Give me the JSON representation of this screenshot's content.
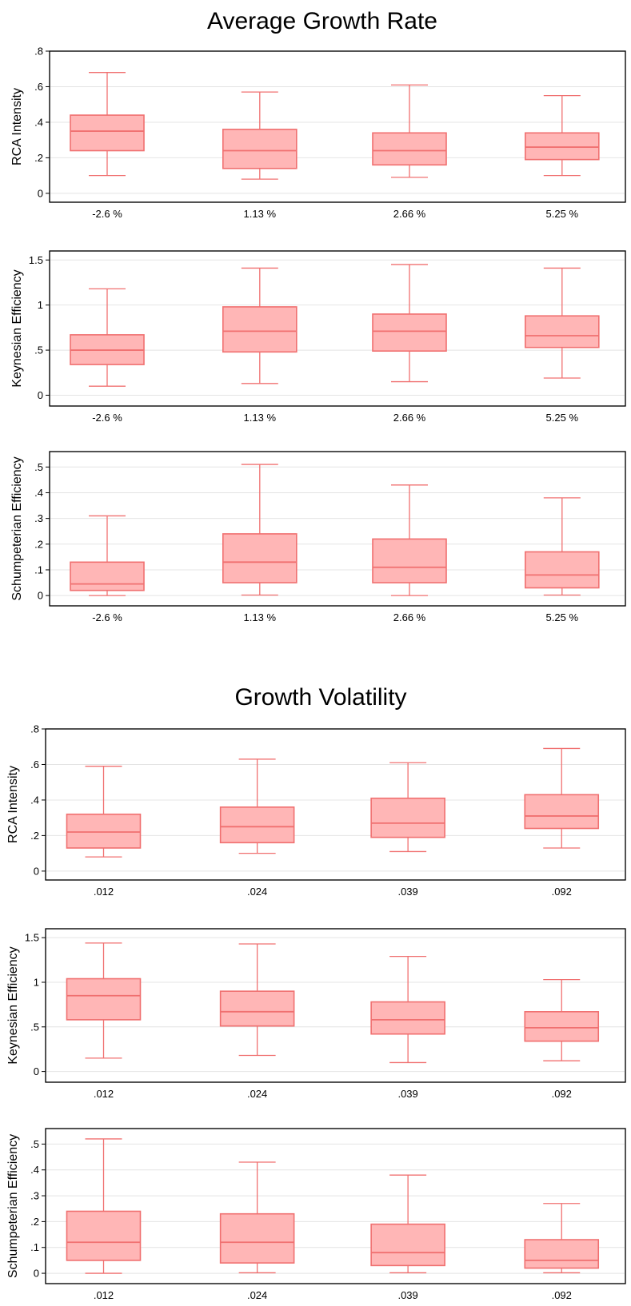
{
  "colors": {
    "box_fill": "#ffb6b6",
    "box_stroke": "#f07070",
    "grid": "#e4e4e4",
    "axis": "#000000"
  },
  "sections": [
    {
      "title": "Average Growth Rate"
    },
    {
      "title": "Growth Volatility"
    }
  ],
  "chart_data": [
    {
      "type": "boxplot",
      "section": "Average Growth Rate",
      "ylabel": "RCA Intensity",
      "categories": [
        "-2.6 %",
        "1.13 %",
        "2.66 %",
        "5.25 %"
      ],
      "ylim": [
        -0.05,
        0.8
      ],
      "yticks": [
        0,
        0.2,
        0.4,
        0.6,
        0.8
      ],
      "ytick_labels": [
        "0",
        ".2",
        ".4",
        ".6",
        ".8"
      ],
      "grid": true,
      "boxes": [
        {
          "whisker_low": 0.1,
          "q1": 0.24,
          "median": 0.35,
          "q3": 0.44,
          "whisker_high": 0.68
        },
        {
          "whisker_low": 0.08,
          "q1": 0.14,
          "median": 0.24,
          "q3": 0.36,
          "whisker_high": 0.57
        },
        {
          "whisker_low": 0.09,
          "q1": 0.16,
          "median": 0.24,
          "q3": 0.34,
          "whisker_high": 0.61
        },
        {
          "whisker_low": 0.1,
          "q1": 0.19,
          "median": 0.26,
          "q3": 0.34,
          "whisker_high": 0.55
        }
      ]
    },
    {
      "type": "boxplot",
      "section": "Average Growth Rate",
      "ylabel": "Keynesian Efficiency",
      "categories": [
        "-2.6 %",
        "1.13 %",
        "2.66 %",
        "5.25 %"
      ],
      "ylim": [
        -0.12,
        1.6
      ],
      "yticks": [
        0,
        0.5,
        1,
        1.5
      ],
      "ytick_labels": [
        "0",
        ".5",
        "1",
        "1.5"
      ],
      "grid": true,
      "boxes": [
        {
          "whisker_low": 0.1,
          "q1": 0.34,
          "median": 0.5,
          "q3": 0.67,
          "whisker_high": 1.18
        },
        {
          "whisker_low": 0.13,
          "q1": 0.48,
          "median": 0.71,
          "q3": 0.98,
          "whisker_high": 1.41
        },
        {
          "whisker_low": 0.15,
          "q1": 0.49,
          "median": 0.71,
          "q3": 0.9,
          "whisker_high": 1.45
        },
        {
          "whisker_low": 0.19,
          "q1": 0.53,
          "median": 0.66,
          "q3": 0.88,
          "whisker_high": 1.41
        }
      ]
    },
    {
      "type": "boxplot",
      "section": "Average Growth Rate",
      "ylabel": "Schumpeterian Efficiency",
      "categories": [
        "-2.6 %",
        "1.13 %",
        "2.66 %",
        "5.25 %"
      ],
      "ylim": [
        -0.04,
        0.56
      ],
      "yticks": [
        0,
        0.1,
        0.2,
        0.3,
        0.4,
        0.5
      ],
      "ytick_labels": [
        "0",
        ".1",
        ".2",
        ".3",
        ".4",
        ".5"
      ],
      "grid": true,
      "boxes": [
        {
          "whisker_low": 0.0,
          "q1": 0.02,
          "median": 0.045,
          "q3": 0.13,
          "whisker_high": 0.31
        },
        {
          "whisker_low": 0.002,
          "q1": 0.05,
          "median": 0.13,
          "q3": 0.24,
          "whisker_high": 0.51
        },
        {
          "whisker_low": 0.0,
          "q1": 0.05,
          "median": 0.11,
          "q3": 0.22,
          "whisker_high": 0.43
        },
        {
          "whisker_low": 0.002,
          "q1": 0.03,
          "median": 0.08,
          "q3": 0.17,
          "whisker_high": 0.38
        }
      ]
    },
    {
      "type": "boxplot",
      "section": "Growth Volatility",
      "ylabel": "RCA Intensity",
      "categories": [
        ".012",
        ".024",
        ".039",
        ".092"
      ],
      "ylim": [
        -0.05,
        0.8
      ],
      "yticks": [
        0,
        0.2,
        0.4,
        0.6,
        0.8
      ],
      "ytick_labels": [
        "0",
        ".2",
        ".4",
        ".6",
        ".8"
      ],
      "grid": true,
      "boxes": [
        {
          "whisker_low": 0.08,
          "q1": 0.13,
          "median": 0.22,
          "q3": 0.32,
          "whisker_high": 0.59
        },
        {
          "whisker_low": 0.1,
          "q1": 0.16,
          "median": 0.25,
          "q3": 0.36,
          "whisker_high": 0.63
        },
        {
          "whisker_low": 0.11,
          "q1": 0.19,
          "median": 0.27,
          "q3": 0.41,
          "whisker_high": 0.61
        },
        {
          "whisker_low": 0.13,
          "q1": 0.24,
          "median": 0.31,
          "q3": 0.43,
          "whisker_high": 0.69
        }
      ]
    },
    {
      "type": "boxplot",
      "section": "Growth Volatility",
      "ylabel": "Keynesian Efficiency",
      "categories": [
        ".012",
        ".024",
        ".039",
        ".092"
      ],
      "ylim": [
        -0.12,
        1.6
      ],
      "yticks": [
        0,
        0.5,
        1,
        1.5
      ],
      "ytick_labels": [
        "0",
        ".5",
        "1",
        "1.5"
      ],
      "grid": true,
      "boxes": [
        {
          "whisker_low": 0.15,
          "q1": 0.58,
          "median": 0.85,
          "q3": 1.04,
          "whisker_high": 1.44
        },
        {
          "whisker_low": 0.18,
          "q1": 0.51,
          "median": 0.67,
          "q3": 0.9,
          "whisker_high": 1.43
        },
        {
          "whisker_low": 0.1,
          "q1": 0.42,
          "median": 0.58,
          "q3": 0.78,
          "whisker_high": 1.29
        },
        {
          "whisker_low": 0.12,
          "q1": 0.34,
          "median": 0.49,
          "q3": 0.67,
          "whisker_high": 1.03
        }
      ]
    },
    {
      "type": "boxplot",
      "section": "Growth Volatility",
      "ylabel": "Schumpeterian Efficiency",
      "categories": [
        ".012",
        ".024",
        ".039",
        ".092"
      ],
      "ylim": [
        -0.04,
        0.56
      ],
      "yticks": [
        0,
        0.1,
        0.2,
        0.3,
        0.4,
        0.5
      ],
      "ytick_labels": [
        "0",
        ".1",
        ".2",
        ".3",
        ".4",
        ".5"
      ],
      "grid": true,
      "boxes": [
        {
          "whisker_low": 0.0,
          "q1": 0.05,
          "median": 0.12,
          "q3": 0.24,
          "whisker_high": 0.52
        },
        {
          "whisker_low": 0.002,
          "q1": 0.04,
          "median": 0.12,
          "q3": 0.23,
          "whisker_high": 0.43
        },
        {
          "whisker_low": 0.002,
          "q1": 0.03,
          "median": 0.08,
          "q3": 0.19,
          "whisker_high": 0.38
        },
        {
          "whisker_low": 0.002,
          "q1": 0.02,
          "median": 0.05,
          "q3": 0.13,
          "whisker_high": 0.27
        }
      ]
    }
  ]
}
